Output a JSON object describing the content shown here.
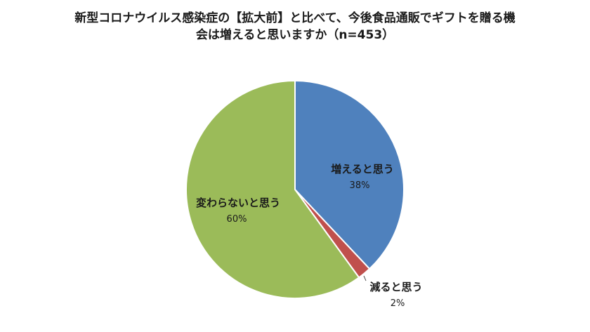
{
  "chart_data": {
    "type": "pie",
    "title_line1": "新型コロナウイルス感染症の【拡大前】と比べて、今後食品通販でギフトを贈る機",
    "title_line2": "会は増えると思いますか（n=453）",
    "slices": [
      {
        "label": "増えると思う",
        "value": 38,
        "pct_label": "38%",
        "color": "#4f81bd"
      },
      {
        "label": "減ると思う",
        "value": 2,
        "pct_label": "2%",
        "color": "#c0504d"
      },
      {
        "label": "変わらないと思う",
        "value": 60,
        "pct_label": "60%",
        "color": "#9bbb59"
      }
    ],
    "start_angle": "12 o'clock",
    "direction": "clockwise",
    "legend": "none",
    "data_labels": "category name and percentage"
  }
}
